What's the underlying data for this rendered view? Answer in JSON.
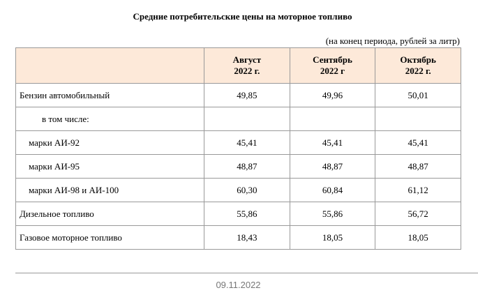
{
  "title": "Средние потребительские цены на моторное топливо",
  "subtitle": "(на конец периода, рублей за литр)",
  "table": {
    "header": [
      [
        "Август",
        "2022 г."
      ],
      [
        "Сентябрь",
        "2022 г"
      ],
      [
        "Октябрь",
        "2022 г."
      ]
    ],
    "rows": [
      {
        "label": "Бензин автомобильный",
        "values": [
          "49,85",
          "49,96",
          "50,01"
        ]
      },
      {
        "label": "в том числе:"
      },
      {
        "label": "марки АИ-92",
        "values": [
          "45,41",
          "45,41",
          "45,41"
        ]
      },
      {
        "label": "марки АИ-95",
        "values": [
          "48,87",
          "48,87",
          "48,87"
        ]
      },
      {
        "label": "марки АИ-98 и АИ-100",
        "values": [
          "60,30",
          "60,84",
          "61,12"
        ]
      },
      {
        "label": "Дизельное топливо",
        "values": [
          "55,86",
          "55,86",
          "56,72"
        ]
      },
      {
        "label": "Газовое моторное топливо",
        "values": [
          "18,43",
          "18,05",
          "18,05"
        ]
      }
    ]
  },
  "footer": {
    "date": "09.11.2022"
  }
}
